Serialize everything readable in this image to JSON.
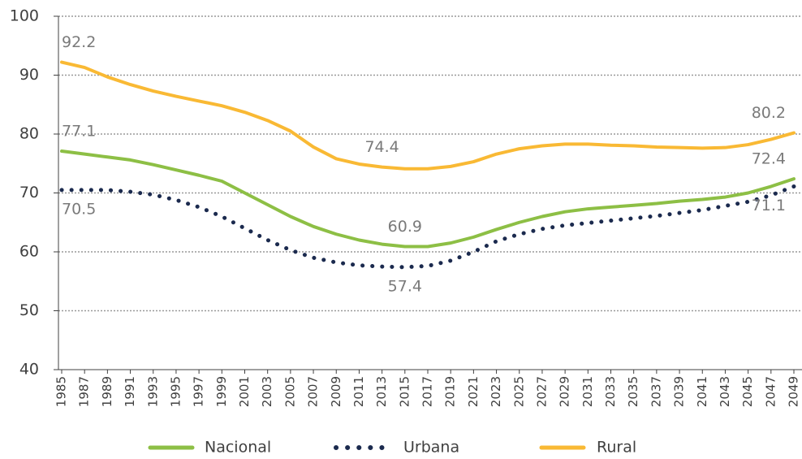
{
  "chart_data": {
    "type": "line",
    "categories": [
      "1985",
      "1987",
      "1989",
      "1991",
      "1993",
      "1995",
      "1997",
      "1999",
      "2001",
      "2003",
      "2005",
      "2007",
      "2009",
      "2011",
      "2013",
      "2015",
      "2017",
      "2019",
      "2021",
      "2023",
      "2025",
      "2027",
      "2029",
      "2031",
      "2033",
      "2035",
      "2037",
      "2039",
      "2041",
      "2043",
      "2045",
      "2047",
      "2049"
    ],
    "series": [
      {
        "name": "Nacional",
        "color": "#8dbf45",
        "style": "solid",
        "label_position": "above",
        "labeled": [
          0,
          15,
          32
        ],
        "values": [
          77.1,
          76.6,
          76.1,
          75.6,
          74.8,
          73.9,
          73.0,
          72.0,
          70.0,
          68.0,
          66.0,
          64.3,
          63.0,
          62.0,
          61.3,
          60.9,
          60.9,
          61.5,
          62.5,
          63.8,
          65.0,
          66.0,
          66.8,
          67.3,
          67.6,
          67.9,
          68.2,
          68.6,
          68.9,
          69.3,
          70.0,
          71.1,
          72.4
        ]
      },
      {
        "name": "Urbana",
        "color": "#1b2a4e",
        "style": "dotted",
        "label_position": "below",
        "labeled": [
          0,
          15,
          32
        ],
        "values": [
          70.5,
          70.5,
          70.5,
          70.2,
          69.7,
          68.8,
          67.6,
          66.0,
          64.0,
          62.0,
          60.3,
          59.0,
          58.2,
          57.7,
          57.5,
          57.4,
          57.6,
          58.5,
          60.0,
          61.8,
          63.0,
          63.9,
          64.5,
          64.9,
          65.3,
          65.7,
          66.1,
          66.6,
          67.1,
          67.8,
          68.5,
          69.6,
          71.1
        ]
      },
      {
        "name": "Rural",
        "color": "#f9b934",
        "style": "solid",
        "label_position": "above",
        "labeled": [
          0,
          14,
          32
        ],
        "values": [
          92.2,
          91.3,
          89.7,
          88.4,
          87.3,
          86.4,
          85.6,
          84.8,
          83.7,
          82.3,
          80.5,
          77.8,
          75.8,
          74.9,
          74.4,
          74.1,
          74.1,
          74.5,
          75.3,
          76.6,
          77.5,
          78.0,
          78.3,
          78.3,
          78.1,
          78.0,
          77.8,
          77.7,
          77.6,
          77.7,
          78.2,
          79.1,
          80.2
        ]
      }
    ],
    "ylim": [
      40,
      100
    ],
    "yticks": [
      40,
      50,
      60,
      70,
      80,
      90,
      100
    ],
    "grid": true,
    "legend": "bottom"
  }
}
